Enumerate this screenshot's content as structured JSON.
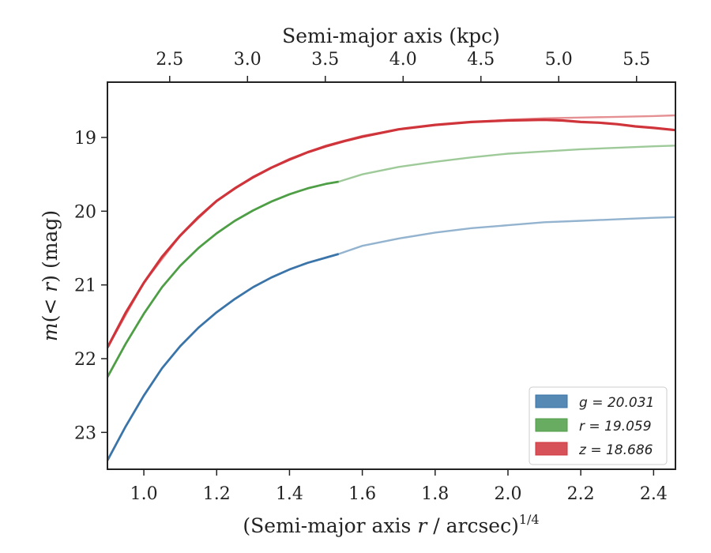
{
  "chart_data": {
    "type": "line",
    "title": "",
    "xlabel_prefix": "(Semi-major axis ",
    "xlabel_var": "r",
    "xlabel_suffix": " / arcsec)",
    "xlabel_sup": "1/4",
    "ylabel_prefix": "m",
    "ylabel_mid": "(< ",
    "ylabel_var": "r",
    "ylabel_suffix": ") (mag)",
    "top_xlabel": "Semi-major axis (kpc)",
    "xlim": [
      0.9,
      2.46
    ],
    "ylim": [
      23.5,
      18.25
    ],
    "y_inverted": true,
    "top_xlim_kpc": [
      2.1,
      5.75
    ],
    "xticks": [
      "1.0",
      "1.2",
      "1.4",
      "1.6",
      "1.8",
      "2.0",
      "2.2",
      "2.4"
    ],
    "yticks": [
      "19",
      "20",
      "21",
      "22",
      "23"
    ],
    "top_xticks": [
      "2.5",
      "3.0",
      "3.5",
      "4.0",
      "4.5",
      "5.0",
      "5.5"
    ],
    "legend_position": "lower-right",
    "grid": false,
    "series": [
      {
        "name": "g = 20.031",
        "band": "g",
        "value": "20.031",
        "color": "#3a74a8",
        "measured": {
          "x": [
            0.9,
            0.95,
            1.0,
            1.05,
            1.1,
            1.15,
            1.2,
            1.25,
            1.3,
            1.35,
            1.4,
            1.45,
            1.5,
            1.535
          ],
          "y": [
            23.38,
            22.92,
            22.5,
            22.13,
            21.83,
            21.58,
            21.37,
            21.19,
            21.03,
            20.9,
            20.79,
            20.7,
            20.63,
            20.58
          ]
        },
        "model": {
          "x": [
            1.535,
            1.6,
            1.7,
            1.8,
            1.9,
            2.0,
            2.1,
            2.2,
            2.3,
            2.4,
            2.46
          ],
          "y": [
            20.58,
            20.47,
            20.37,
            20.29,
            20.23,
            20.19,
            20.15,
            20.13,
            20.11,
            20.09,
            20.08
          ]
        }
      },
      {
        "name": "r = 19.059",
        "band": "r",
        "value": "19.059",
        "color": "#4e9e46",
        "measured": {
          "x": [
            0.9,
            0.95,
            1.0,
            1.05,
            1.1,
            1.15,
            1.2,
            1.25,
            1.3,
            1.35,
            1.4,
            1.45,
            1.5,
            1.535
          ],
          "y": [
            22.25,
            21.8,
            21.39,
            21.03,
            20.74,
            20.5,
            20.3,
            20.13,
            19.99,
            19.87,
            19.77,
            19.69,
            19.63,
            19.6
          ]
        },
        "model": {
          "x": [
            1.535,
            1.6,
            1.7,
            1.8,
            1.9,
            2.0,
            2.1,
            2.2,
            2.3,
            2.4,
            2.46
          ],
          "y": [
            19.6,
            19.5,
            19.4,
            19.33,
            19.27,
            19.22,
            19.19,
            19.16,
            19.14,
            19.12,
            19.11
          ]
        }
      },
      {
        "name": "z = 18.686",
        "band": "z",
        "value": "18.686",
        "color": "#d0343b",
        "measured": {
          "x": [
            0.9,
            0.95,
            1.0,
            1.05,
            1.1,
            1.15,
            1.2,
            1.25,
            1.3,
            1.35,
            1.4,
            1.45,
            1.5,
            1.55,
            1.6,
            1.7,
            1.8,
            1.9,
            2.0,
            2.1,
            2.15,
            2.2,
            2.25,
            2.3,
            2.35,
            2.4,
            2.46
          ],
          "y": [
            21.85,
            21.38,
            20.97,
            20.62,
            20.33,
            20.08,
            19.86,
            19.69,
            19.54,
            19.41,
            19.3,
            19.2,
            19.12,
            19.05,
            18.99,
            18.89,
            18.83,
            18.79,
            18.77,
            18.76,
            18.77,
            18.79,
            18.8,
            18.82,
            18.85,
            18.87,
            18.9
          ]
        },
        "model": {
          "x": [
            0.9,
            1.0,
            1.1,
            1.2,
            1.3,
            1.4,
            1.5,
            1.6,
            1.7,
            1.8,
            1.9,
            2.0,
            2.1,
            2.2,
            2.3,
            2.4,
            2.46
          ],
          "y": [
            21.85,
            20.97,
            20.33,
            19.86,
            19.53,
            19.29,
            19.11,
            18.98,
            18.89,
            18.83,
            18.79,
            18.76,
            18.74,
            18.73,
            18.72,
            18.71,
            18.7
          ]
        }
      }
    ]
  }
}
